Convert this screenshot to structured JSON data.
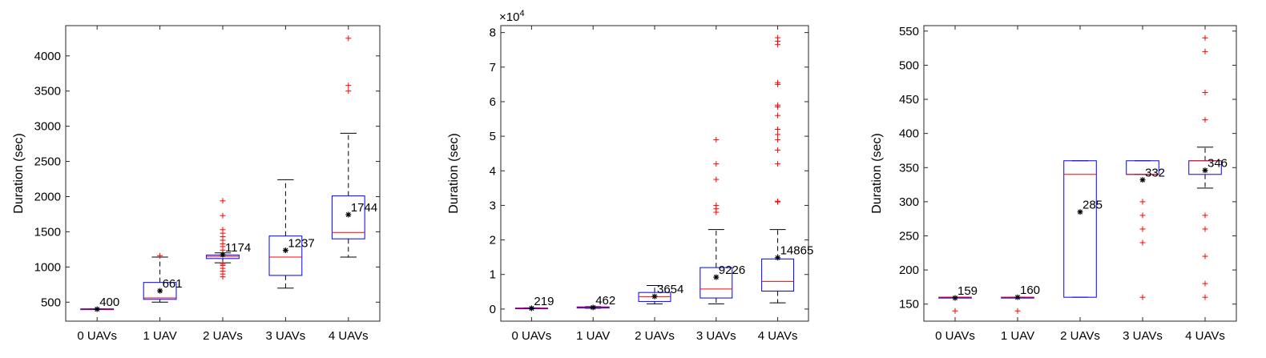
{
  "chart_data": [
    {
      "type": "box",
      "ylabel": "Duration (sec)",
      "categories": [
        "0 UAVs",
        "1 UAV",
        "2 UAVs",
        "3 UAVs",
        "4 UAVs"
      ],
      "ylim": [
        230,
        4430
      ],
      "yticks": [
        500,
        1000,
        1500,
        2000,
        2500,
        3000,
        3500,
        4000
      ],
      "exponent_label": "",
      "boxes": [
        {
          "q1": 395,
          "median": 400,
          "q3": 405,
          "whisker_low": 395,
          "whisker_high": 405,
          "mean": 400,
          "mean_label": "400",
          "outliers": []
        },
        {
          "q1": 540,
          "median": 560,
          "q3": 780,
          "whisker_low": 500,
          "whisker_high": 1140,
          "mean": 661,
          "mean_label": "661",
          "outliers": [
            1160
          ]
        },
        {
          "q1": 1120,
          "median": 1150,
          "q3": 1170,
          "whisker_low": 1060,
          "whisker_high": 1200,
          "mean": 1174,
          "mean_label": "1174",
          "outliers": [
            860,
            900,
            940,
            980,
            1020,
            1040,
            1240,
            1290,
            1330,
            1380,
            1430,
            1480,
            1530,
            1730,
            1940
          ]
        },
        {
          "q1": 880,
          "median": 1140,
          "q3": 1440,
          "whisker_low": 700,
          "whisker_high": 2240,
          "mean": 1237,
          "mean_label": "1237",
          "outliers": []
        },
        {
          "q1": 1400,
          "median": 1490,
          "q3": 2010,
          "whisker_low": 1140,
          "whisker_high": 2900,
          "mean": 1744,
          "mean_label": "1744",
          "outliers": [
            3500,
            3580,
            4250
          ]
        }
      ]
    },
    {
      "type": "box",
      "ylabel": "Duration (sec)",
      "categories": [
        "0 UAVs",
        "1 UAV",
        "2 UAVs",
        "3 UAVs",
        "4 UAVs"
      ],
      "ylim": [
        -3500,
        82000
      ],
      "yticks": [
        0,
        10000,
        20000,
        30000,
        40000,
        50000,
        60000,
        70000,
        80000
      ],
      "ytick_labels": [
        "0",
        "1",
        "2",
        "3",
        "4",
        "5",
        "6",
        "7",
        "8"
      ],
      "exponent_label": "×10",
      "exponent_power": "4",
      "boxes": [
        {
          "q1": 150,
          "median": 219,
          "q3": 300,
          "whisker_low": 100,
          "whisker_high": 350,
          "mean": 219,
          "mean_label": "219",
          "outliers": []
        },
        {
          "q1": 300,
          "median": 460,
          "q3": 620,
          "whisker_low": 250,
          "whisker_high": 700,
          "mean": 462,
          "mean_label": "462",
          "outliers": []
        },
        {
          "q1": 2200,
          "median": 3600,
          "q3": 4800,
          "whisker_low": 1500,
          "whisker_high": 6800,
          "mean": 3654,
          "mean_label": "3654",
          "outliers": []
        },
        {
          "q1": 3200,
          "median": 5800,
          "q3": 12000,
          "whisker_low": 1500,
          "whisker_high": 23000,
          "mean": 9226,
          "mean_label": "9226",
          "outliers": [
            28000,
            29000,
            30000,
            37500,
            42000,
            49000
          ]
        },
        {
          "q1": 5200,
          "median": 8000,
          "q3": 14500,
          "whisker_low": 1800,
          "whisker_high": 23000,
          "mean": 14865,
          "mean_label": "14865",
          "outliers": [
            31000,
            31200,
            42000,
            46000,
            49000,
            50500,
            52000,
            56000,
            58500,
            59000,
            65000,
            65500,
            76500,
            77500,
            78500
          ]
        }
      ]
    },
    {
      "type": "box",
      "ylabel": "Duration (sec)",
      "categories": [
        "0 UAVs",
        "1 UAV",
        "2 UAVs",
        "3 UAVs",
        "4 UAVs"
      ],
      "ylim": [
        125,
        558
      ],
      "yticks": [
        150,
        200,
        250,
        300,
        350,
        400,
        450,
        500,
        550
      ],
      "exponent_label": "",
      "boxes": [
        {
          "q1": 160,
          "median": 160,
          "q3": 160,
          "whisker_low": 160,
          "whisker_high": 160,
          "mean": 159,
          "mean_label": "159",
          "outliers": [
            140
          ]
        },
        {
          "q1": 160,
          "median": 160,
          "q3": 160,
          "whisker_low": 160,
          "whisker_high": 160,
          "mean": 160,
          "mean_label": "160",
          "outliers": [
            140
          ]
        },
        {
          "q1": 160,
          "median": 340,
          "q3": 360,
          "whisker_low": 160,
          "whisker_high": 360,
          "mean": 285,
          "mean_label": "285",
          "outliers": []
        },
        {
          "q1": 340,
          "median": 340,
          "q3": 360,
          "whisker_low": 340,
          "whisker_high": 360,
          "mean": 332,
          "mean_label": "332",
          "outliers": [
            160,
            240,
            260,
            280,
            300
          ]
        },
        {
          "q1": 340,
          "median": 360,
          "q3": 360,
          "whisker_low": 320,
          "whisker_high": 380,
          "mean": 346,
          "mean_label": "346",
          "outliers": [
            160,
            180,
            220,
            260,
            280,
            420,
            460,
            520,
            540
          ]
        }
      ]
    }
  ]
}
